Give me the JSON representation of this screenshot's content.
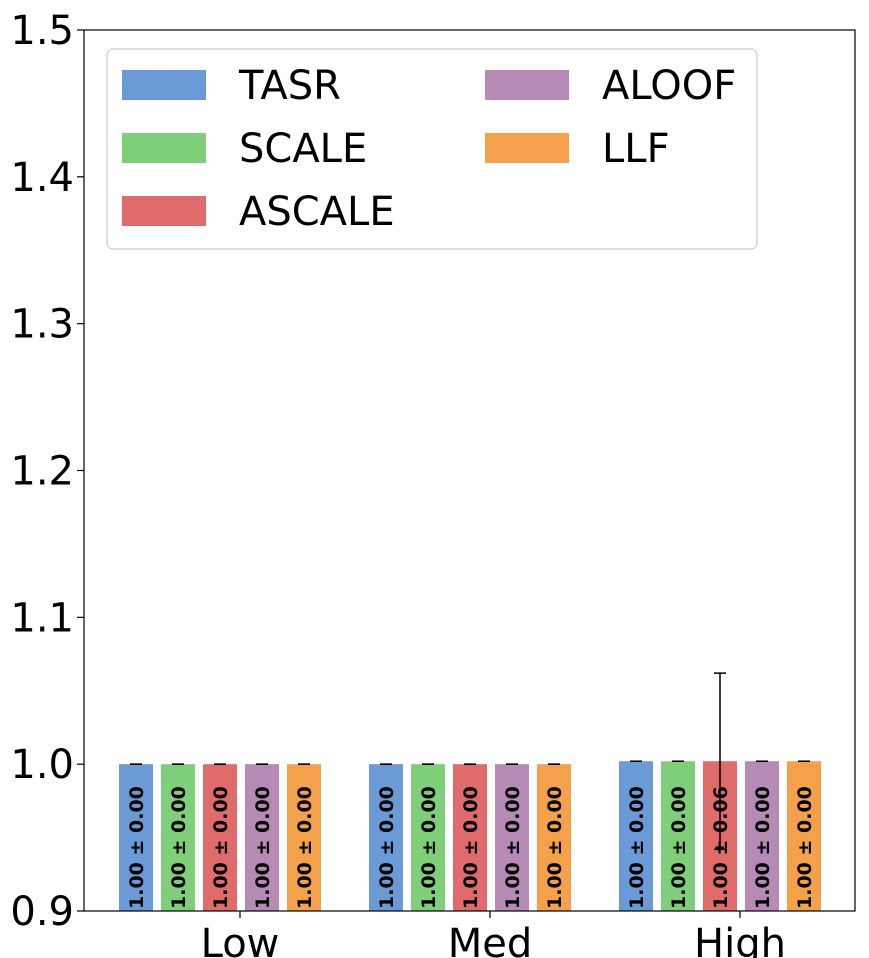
{
  "chart_data": {
    "type": "bar",
    "categories": [
      "Low",
      "Med",
      "High"
    ],
    "series": [
      {
        "name": "TASR",
        "color": "#6b9bd6",
        "values": [
          1.0,
          1.0,
          1.002
        ],
        "errors": [
          0.0,
          0.0,
          0.0
        ],
        "labels": [
          "1.00 ± 0.00",
          "1.00 ± 0.00",
          "1.00 ± 0.00"
        ]
      },
      {
        "name": "SCALE",
        "color": "#7fcf7a",
        "values": [
          1.0,
          1.0,
          1.002
        ],
        "errors": [
          0.0,
          0.0,
          0.0
        ],
        "labels": [
          "1.00 ± 0.00",
          "1.00 ± 0.00",
          "1.00 ± 0.00"
        ]
      },
      {
        "name": "ASCALE",
        "color": "#e06b6b",
        "values": [
          1.0,
          1.0,
          1.002
        ],
        "errors": [
          0.0,
          0.0,
          0.06
        ],
        "labels": [
          "1.00 ± 0.00",
          "1.00 ± 0.00",
          "1.00 ± 0.06"
        ]
      },
      {
        "name": "ALOOF",
        "color": "#b58ab5",
        "values": [
          1.0,
          1.0,
          1.002
        ],
        "errors": [
          0.0,
          0.0,
          0.0
        ],
        "labels": [
          "1.00 ± 0.00",
          "1.00 ± 0.00",
          "1.00 ± 0.00"
        ]
      },
      {
        "name": "LLF",
        "color": "#f5a04a",
        "values": [
          1.0,
          1.0,
          1.002
        ],
        "errors": [
          0.0,
          0.0,
          0.0
        ],
        "labels": [
          "1.00 ± 0.00",
          "1.00 ± 0.00",
          "1.00 ± 0.00"
        ]
      }
    ],
    "y_ticks": [
      "0.9",
      "1.0",
      "1.1",
      "1.2",
      "1.3",
      "1.4",
      "1.5"
    ],
    "ylim": [
      0.9,
      1.5
    ],
    "title": "",
    "xlabel": "",
    "ylabel": "",
    "grid": false,
    "legend_position": "top-left",
    "legend_columns": 2
  }
}
